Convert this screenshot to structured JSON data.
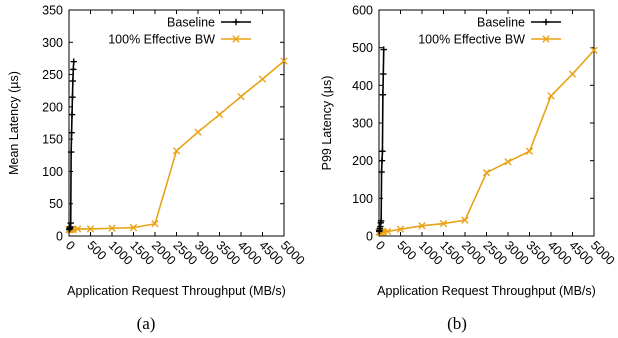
{
  "chart_data": [
    {
      "type": "line",
      "caption": "(a)",
      "xlabel": "Application Request Throughput (MB/s)",
      "ylabel": "Mean Latency (µs)",
      "xlim": [
        0,
        5000
      ],
      "ylim": [
        0,
        350
      ],
      "xticks": [
        "0",
        "500",
        "1000",
        "1500",
        "2000",
        "2500",
        "3000",
        "3500",
        "4000",
        "4500",
        "5000"
      ],
      "yticks": [
        "0",
        "50",
        "100",
        "150",
        "200",
        "250",
        "300",
        "350"
      ],
      "legend_position": "top-right",
      "grid": false,
      "series": [
        {
          "name": "Baseline",
          "color": "#000000",
          "marker": "plus",
          "points": [
            [
              5,
              10
            ],
            [
              10,
              11
            ],
            [
              20,
              12
            ],
            [
              30,
              14
            ],
            [
              40,
              20
            ],
            [
              50,
              130
            ],
            [
              60,
              160
            ],
            [
              70,
              188
            ],
            [
              80,
              215
            ],
            [
              90,
              240
            ],
            [
              100,
              258
            ],
            [
              110,
              270
            ]
          ]
        },
        {
          "name": "100% Effective BW",
          "color": "#e8a317",
          "marker": "x",
          "points": [
            [
              0,
              10
            ],
            [
              20,
              10
            ],
            [
              50,
              10
            ],
            [
              100,
              10
            ],
            [
              200,
              11
            ],
            [
              500,
              11
            ],
            [
              1000,
              12
            ],
            [
              1500,
              13
            ],
            [
              2000,
              19
            ],
            [
              2500,
              132
            ],
            [
              3000,
              161
            ],
            [
              3500,
              188
            ],
            [
              4000,
              216
            ],
            [
              4500,
              243
            ],
            [
              5000,
              271
            ]
          ]
        }
      ]
    },
    {
      "type": "line",
      "caption": "(b)",
      "xlabel": "Application Request Throughput (MB/s)",
      "ylabel": "P99 Latency (µs)",
      "xlim": [
        0,
        5000
      ],
      "ylim": [
        0,
        600
      ],
      "xticks": [
        "0",
        "500",
        "1000",
        "1500",
        "2000",
        "2500",
        "3000",
        "3500",
        "4000",
        "4500",
        "5000"
      ],
      "yticks": [
        "0",
        "100",
        "200",
        "300",
        "400",
        "500",
        "600"
      ],
      "legend_position": "top-right",
      "grid": false,
      "series": [
        {
          "name": "Baseline",
          "color": "#000000",
          "marker": "plus",
          "points": [
            [
              5,
              12
            ],
            [
              10,
              15
            ],
            [
              20,
              20
            ],
            [
              30,
              25
            ],
            [
              40,
              35
            ],
            [
              50,
              40
            ],
            [
              60,
              170
            ],
            [
              70,
              200
            ],
            [
              80,
              225
            ],
            [
              90,
              375
            ],
            [
              100,
              430
            ],
            [
              110,
              495
            ]
          ]
        },
        {
          "name": "100% Effective BW",
          "color": "#e8a317",
          "marker": "x",
          "points": [
            [
              0,
              10
            ],
            [
              20,
              10
            ],
            [
              50,
              10
            ],
            [
              100,
              11
            ],
            [
              200,
              12
            ],
            [
              500,
              18
            ],
            [
              1000,
              27
            ],
            [
              1500,
              33
            ],
            [
              2000,
              42
            ],
            [
              2500,
              168
            ],
            [
              3000,
              197
            ],
            [
              3500,
              225
            ],
            [
              4000,
              372
            ],
            [
              4500,
              430
            ],
            [
              5000,
              493
            ]
          ]
        }
      ]
    }
  ]
}
